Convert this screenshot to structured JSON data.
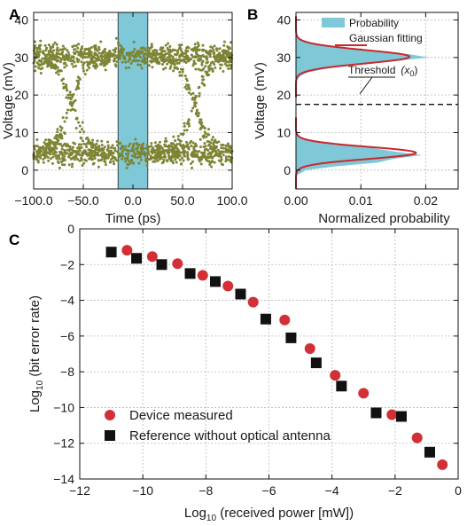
{
  "chart_data": [
    {
      "panel": "A",
      "type": "scatter",
      "xlabel": "Time (ps)",
      "ylabel": "Voltage (mV)",
      "xlim": [
        -100,
        100
      ],
      "ylim": [
        -5,
        42
      ],
      "xticks": [
        "−100.0",
        "−50.0",
        "0.0",
        "50.0",
        "100.0"
      ],
      "yticks": [
        "0",
        "10",
        "20",
        "30",
        "40"
      ],
      "grid": true,
      "window": {
        "x0": -15,
        "x1": 15,
        "color": "#7ec8d8"
      },
      "point_color": "#7d8434",
      "levels": {
        "high": 30.5,
        "low": 4.5,
        "spread": 1.6
      },
      "series": [
        {
          "x": [
            -95,
            -80,
            -60,
            -40,
            -20,
            0,
            20,
            40,
            60,
            80,
            95
          ],
          "y": [
            30.5,
            31,
            30,
            31.5,
            30.5,
            31,
            30,
            31,
            30.5,
            30,
            31
          ]
        },
        {
          "x": [
            -95,
            -80,
            -60,
            -40,
            -20,
            0,
            20,
            40,
            60,
            80,
            95
          ],
          "y": [
            4.5,
            5,
            4,
            5.5,
            4.5,
            5,
            4,
            5,
            4.5,
            4,
            5
          ]
        }
      ]
    },
    {
      "panel": "B",
      "type": "area",
      "xlabel": "Normalized probability",
      "ylabel": "Voltage (mV)",
      "xlim": [
        0,
        0.025
      ],
      "ylim": [
        -5,
        42
      ],
      "xticks": [
        "0.00",
        "0.01",
        "0.02"
      ],
      "yticks": [
        "0",
        "10",
        "20",
        "30",
        "40"
      ],
      "grid": true,
      "legend": [
        {
          "label": "Probability",
          "color": "#7ec8d8"
        },
        {
          "label": "Gaussian fitting",
          "color": "#c8282d"
        }
      ],
      "threshold": {
        "label": "Threshold",
        "symbol": "(x",
        "sub": "0",
        "close": ")",
        "y": 17.5
      },
      "gaussian_fitting": [
        {
          "mean": 30.2,
          "sigma": 1.8,
          "amp": 0.0175
        },
        {
          "mean": 4.6,
          "sigma": 1.6,
          "amp": 0.0185
        }
      ],
      "probability": {
        "y": [
          25,
          26,
          27,
          28,
          29,
          30,
          31,
          32,
          33,
          34,
          35,
          0,
          1,
          2,
          3,
          4,
          5,
          6,
          7,
          8,
          9
        ],
        "p": [
          0.0006,
          0.0018,
          0.0045,
          0.009,
          0.015,
          0.0205,
          0.017,
          0.011,
          0.005,
          0.0018,
          0.0005,
          0.0015,
          0.006,
          0.0125,
          0.015,
          0.0195,
          0.015,
          0.0115,
          0.006,
          0.002,
          0.0006
        ]
      }
    },
    {
      "panel": "C",
      "type": "scatter",
      "xlabel": "Log",
      "xlabel_sub": "10",
      "xlabel_rest": " (received power [mW])",
      "ylabel": "Log",
      "ylabel_sub": "10",
      "ylabel_rest": " (bit error rate)",
      "xlim": [
        -12,
        0
      ],
      "ylim": [
        -14,
        0
      ],
      "xticks": [
        "−12",
        "−10",
        "−8",
        "−6",
        "−4",
        "−2",
        "0"
      ],
      "yticks": [
        "0",
        "−2",
        "−4",
        "−6",
        "−8",
        "−10",
        "−12",
        "−14"
      ],
      "grid": true,
      "legend_position": "bottom-left",
      "series": [
        {
          "name": "Device measured",
          "marker": "circle",
          "color": "#d32f37",
          "x": [
            -10.5,
            -9.7,
            -8.9,
            -8.1,
            -7.3,
            -6.5,
            -5.5,
            -4.7,
            -3.9,
            -3.0,
            -2.1,
            -1.3,
            -0.5
          ],
          "y": [
            -1.2,
            -1.55,
            -1.95,
            -2.6,
            -3.2,
            -4.1,
            -5.1,
            -6.7,
            -8.2,
            -9.2,
            -10.4,
            -11.7,
            -13.2
          ]
        },
        {
          "name": "Reference without optical antenna",
          "marker": "square",
          "color": "#111111",
          "x": [
            -11.0,
            -10.2,
            -9.4,
            -8.5,
            -7.7,
            -6.9,
            -6.1,
            -5.3,
            -4.5,
            -3.7,
            -2.6,
            -1.8,
            -0.9
          ],
          "y": [
            -1.3,
            -1.65,
            -2.0,
            -2.5,
            -2.95,
            -3.65,
            -5.05,
            -6.1,
            -7.5,
            -8.8,
            -10.3,
            -10.5,
            -12.5
          ]
        }
      ]
    }
  ],
  "panels": {
    "a": "A",
    "b": "B",
    "c": "C"
  }
}
